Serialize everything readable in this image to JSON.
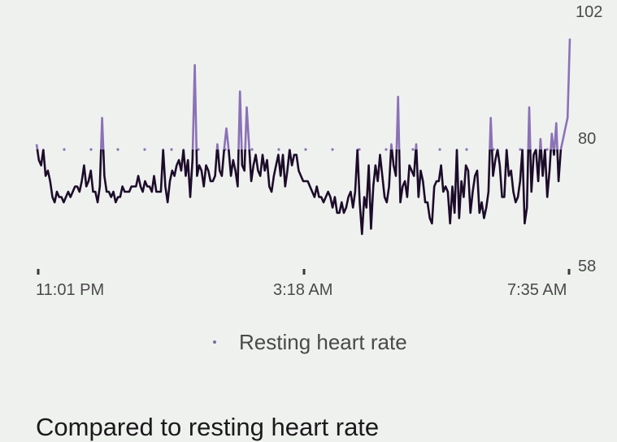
{
  "chart_data": {
    "type": "line",
    "title": "",
    "ylim": [
      58,
      102
    ],
    "yticks": [
      "102",
      "80",
      "58"
    ],
    "xticks": [
      "11:01 PM",
      "3:18 AM",
      "7:35 AM"
    ],
    "baseline": 80,
    "series": [
      {
        "name": "Resting heart rate",
        "values": [
          81,
          78,
          77,
          80,
          75,
          76,
          74,
          71,
          70,
          72,
          71,
          71,
          70,
          71,
          72,
          71,
          72,
          73,
          73,
          72,
          74,
          77,
          73,
          74,
          76,
          72,
          72,
          70,
          73,
          86,
          75,
          72,
          72,
          71,
          72,
          70,
          71,
          71,
          73,
          72,
          72,
          72,
          73,
          73,
          73,
          75,
          73,
          72,
          74,
          73,
          73,
          72,
          75,
          72,
          72,
          72,
          80,
          73,
          70,
          74,
          76,
          75,
          77,
          78,
          76,
          80,
          75,
          78,
          71,
          78,
          96,
          75,
          77,
          76,
          73,
          77,
          76,
          74,
          74,
          75,
          81,
          76,
          75,
          80,
          84,
          80,
          75,
          78,
          76,
          73,
          91,
          77,
          76,
          88,
          81,
          74,
          77,
          79,
          76,
          75,
          79,
          76,
          78,
          73,
          72,
          75,
          77,
          79,
          75,
          79,
          73,
          76,
          80,
          77,
          79,
          79,
          76,
          75,
          74,
          74,
          74,
          73,
          72,
          71,
          73,
          71,
          71,
          70,
          71,
          72,
          71,
          69,
          71,
          68,
          68,
          70,
          68,
          69,
          71,
          72,
          69,
          72,
          80,
          70,
          64,
          71,
          69,
          77,
          65,
          73,
          77,
          74,
          79,
          75,
          71,
          70,
          73,
          81,
          77,
          75,
          90,
          70,
          73,
          74,
          71,
          77,
          76,
          75,
          81,
          71,
          76,
          74,
          70,
          70,
          67,
          66,
          73,
          74,
          74,
          77,
          72,
          73,
          72,
          66,
          73,
          68,
          80,
          67,
          74,
          71,
          77,
          76,
          68,
          72,
          75,
          76,
          68,
          70,
          67,
          69,
          72,
          86,
          75,
          78,
          80,
          77,
          71,
          71,
          80,
          75,
          76,
          72,
          70,
          71,
          74,
          80,
          66,
          69,
          88,
          72,
          79,
          80,
          74,
          82,
          75,
          80,
          71,
          76,
          83,
          79,
          85,
          74,
          80,
          82,
          84,
          86,
          101
        ]
      }
    ],
    "legend_position": "bottom",
    "colors": {
      "line": "#1c0c2a",
      "above_baseline": "#8b72b6",
      "dots": "#8b72b6"
    }
  },
  "legend": {
    "label": "Resting heart rate"
  },
  "section": {
    "title": "Compared to resting heart rate"
  }
}
